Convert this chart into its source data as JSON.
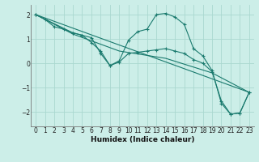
{
  "xlabel": "Humidex (Indice chaleur)",
  "background_color": "#cceee8",
  "grid_color": "#aad8d0",
  "line_color": "#1a7a6e",
  "xlim": [
    -0.5,
    23.5
  ],
  "ylim": [
    -2.6,
    2.4
  ],
  "xticks": [
    0,
    1,
    2,
    3,
    4,
    5,
    6,
    7,
    8,
    9,
    10,
    11,
    12,
    13,
    14,
    15,
    16,
    17,
    18,
    19,
    20,
    21,
    22,
    23
  ],
  "yticks": [
    -2,
    -1,
    0,
    1,
    2
  ],
  "curves": [
    {
      "x": [
        0,
        1,
        2,
        3,
        4,
        5,
        6,
        7,
        8,
        9,
        10,
        11,
        12,
        13,
        14,
        15,
        16,
        17,
        18,
        19,
        20,
        21,
        22,
        23
      ],
      "y": [
        2.0,
        1.8,
        1.5,
        1.4,
        1.25,
        1.15,
        0.85,
        0.5,
        -0.1,
        0.1,
        0.95,
        1.3,
        1.4,
        2.0,
        2.05,
        1.9,
        1.6,
        0.6,
        0.3,
        -0.3,
        -1.65,
        -2.1,
        -2.05,
        -1.2
      ]
    },
    {
      "x": [
        0,
        4,
        5,
        6,
        7,
        8,
        9,
        10,
        11,
        12,
        13,
        14,
        15,
        16,
        17,
        18,
        19,
        20,
        21,
        22,
        23
      ],
      "y": [
        2.0,
        1.25,
        1.15,
        1.05,
        0.4,
        -0.1,
        0.05,
        0.4,
        0.45,
        0.5,
        0.55,
        0.6,
        0.5,
        0.4,
        0.15,
        0.0,
        -0.35,
        -1.55,
        -2.1,
        -2.05,
        -1.2
      ]
    },
    {
      "x": [
        0,
        23
      ],
      "y": [
        2.0,
        -1.2
      ]
    },
    {
      "x": [
        0,
        4,
        9,
        14,
        19,
        23
      ],
      "y": [
        2.0,
        1.2,
        0.5,
        0.2,
        -0.4,
        -1.2
      ]
    }
  ]
}
